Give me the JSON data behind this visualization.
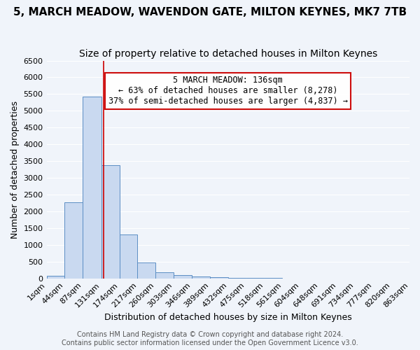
{
  "title": "5, MARCH MEADOW, WAVENDON GATE, MILTON KEYNES, MK7 7TB",
  "subtitle": "Size of property relative to detached houses in Milton Keynes",
  "xlabel": "Distribution of detached houses by size in Milton Keynes",
  "ylabel": "Number of detached properties",
  "bar_color": "#c9d9f0",
  "bar_edge_color": "#5b8ec4",
  "bin_labels": [
    "1sqm",
    "44sqm",
    "87sqm",
    "131sqm",
    "174sqm",
    "217sqm",
    "260sqm",
    "303sqm",
    "346sqm",
    "389sqm",
    "432sqm",
    "475sqm",
    "518sqm",
    "561sqm",
    "604sqm",
    "648sqm",
    "691sqm",
    "734sqm",
    "777sqm",
    "820sqm",
    "863sqm"
  ],
  "bar_values": [
    75,
    2270,
    5430,
    3380,
    1310,
    480,
    185,
    90,
    55,
    30,
    15,
    8,
    4,
    2,
    1,
    1,
    0,
    0,
    0,
    0
  ],
  "bin_edges": [
    1,
    44,
    87,
    131,
    174,
    217,
    260,
    303,
    346,
    389,
    432,
    475,
    518,
    561,
    604,
    648,
    691,
    734,
    777,
    820,
    863
  ],
  "ylim": [
    0,
    6500
  ],
  "yticks": [
    0,
    500,
    1000,
    1500,
    2000,
    2500,
    3000,
    3500,
    4000,
    4500,
    5000,
    5500,
    6000,
    6500
  ],
  "property_size": 136,
  "annotation_title": "5 MARCH MEADOW: 136sqm",
  "annotation_line1": "← 63% of detached houses are smaller (8,278)",
  "annotation_line2": "37% of semi-detached houses are larger (4,837) →",
  "vline_color": "#cc0000",
  "annotation_box_edge": "#cc0000",
  "footnote1": "Contains HM Land Registry data © Crown copyright and database right 2024.",
  "footnote2": "Contains public sector information licensed under the Open Government Licence v3.0.",
  "background_color": "#f0f4fa",
  "grid_color": "#ffffff",
  "title_fontsize": 11,
  "subtitle_fontsize": 10,
  "axis_label_fontsize": 9,
  "tick_fontsize": 8,
  "annotation_fontsize": 8.5,
  "footnote_fontsize": 7
}
